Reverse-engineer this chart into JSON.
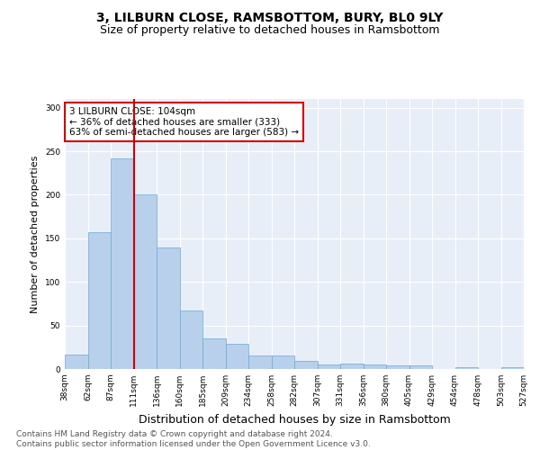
{
  "title1": "3, LILBURN CLOSE, RAMSBOTTOM, BURY, BL0 9LY",
  "title2": "Size of property relative to detached houses in Ramsbottom",
  "xlabel": "Distribution of detached houses by size in Ramsbottom",
  "ylabel": "Number of detached properties",
  "bar_values": [
    17,
    157,
    242,
    200,
    140,
    67,
    35,
    29,
    15,
    15,
    9,
    5,
    6,
    5,
    4,
    4,
    0,
    2,
    0,
    2
  ],
  "categories": [
    "38sqm",
    "62sqm",
    "87sqm",
    "111sqm",
    "136sqm",
    "160sqm",
    "185sqm",
    "209sqm",
    "234sqm",
    "258sqm",
    "282sqm",
    "307sqm",
    "331sqm",
    "356sqm",
    "380sqm",
    "405sqm",
    "429sqm",
    "454sqm",
    "478sqm",
    "503sqm",
    "527sqm"
  ],
  "bar_color": "#b8d0eb",
  "bar_edge_color": "#6aaad4",
  "bg_color": "#e8eef8",
  "grid_color": "#ffffff",
  "vline_x": 2.5,
  "vline_color": "#cc0000",
  "annotation_text": "3 LILBURN CLOSE: 104sqm\n← 36% of detached houses are smaller (333)\n63% of semi-detached houses are larger (583) →",
  "annotation_box_color": "#ffffff",
  "annotation_box_edge": "#cc0000",
  "ylim": [
    0,
    310
  ],
  "yticks": [
    0,
    50,
    100,
    150,
    200,
    250,
    300
  ],
  "footnote": "Contains HM Land Registry data © Crown copyright and database right 2024.\nContains public sector information licensed under the Open Government Licence v3.0.",
  "title1_fontsize": 10,
  "title2_fontsize": 9,
  "xlabel_fontsize": 9,
  "ylabel_fontsize": 8,
  "annotation_fontsize": 7.5,
  "footnote_fontsize": 6.5,
  "tick_fontsize": 6.5
}
